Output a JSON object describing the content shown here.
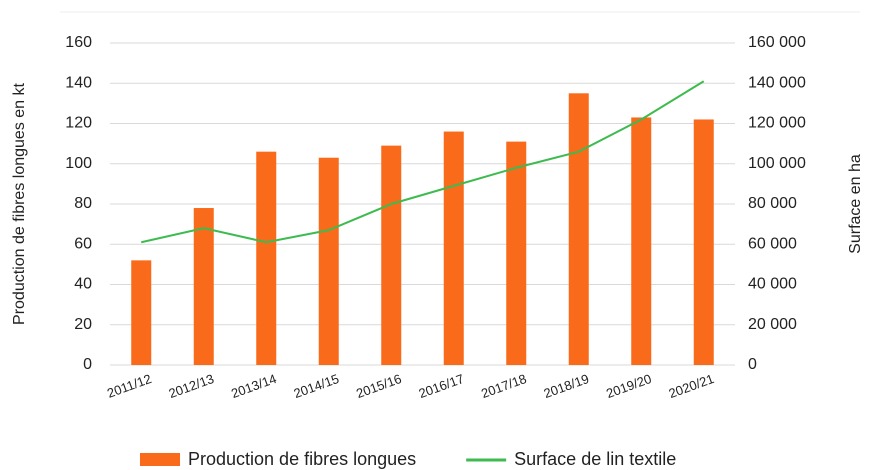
{
  "chart_data": {
    "type": "bar_line",
    "y_label": "Production de fibres longues en kt",
    "y2_label": "Surface en ha",
    "categories": [
      "2011/12",
      "2012/13",
      "2013/14",
      "2014/15",
      "2015/16",
      "2016/17",
      "2017/18",
      "2018/19",
      "2019/20",
      "2020/21"
    ],
    "series": [
      {
        "name": "Production de fibres longues",
        "color": "#f96a1b",
        "type": "bar",
        "values": [
          52,
          78,
          106,
          103,
          109,
          116,
          111,
          135,
          123,
          122
        ]
      },
      {
        "name": "Surface de lin textile",
        "color": "#3dbb4f",
        "type": "line",
        "axis": "y2",
        "values": [
          61000,
          68000,
          61000,
          67000,
          80000,
          89000,
          98000,
          106000,
          122000,
          141000
        ]
      }
    ],
    "ylim": [
      0,
      160
    ],
    "yticks": [
      0,
      20,
      40,
      60,
      80,
      100,
      120,
      140,
      160
    ],
    "y2lim": [
      0,
      160000
    ],
    "y2ticks": [
      0,
      {
        "value": 20000,
        "label": "20 000"
      },
      {
        "value": 40000,
        "label": "40 000"
      },
      {
        "value": 60000,
        "label": "60 000"
      },
      {
        "value": 80000,
        "label": "80 000"
      },
      {
        "value": 100000,
        "label": "100 000"
      },
      {
        "value": 120000,
        "label": "120 000"
      },
      {
        "value": 140000,
        "label": "140 000"
      },
      {
        "value": 160000,
        "label": "160 000"
      }
    ],
    "grid": true
  }
}
